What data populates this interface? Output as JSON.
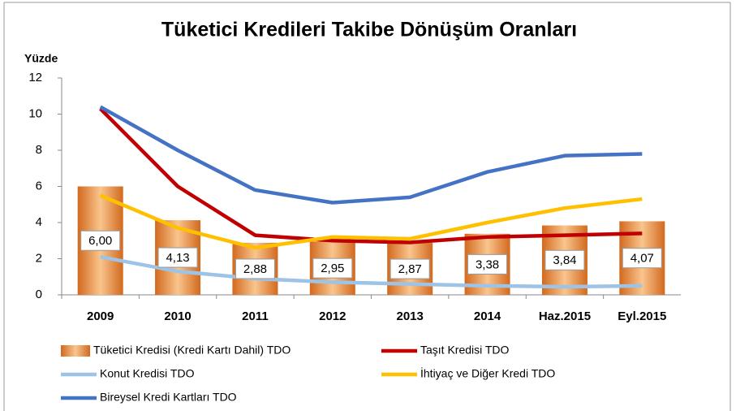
{
  "chart_data": {
    "type": "combo",
    "title": "Tüketici Kredileri Takibe Dönüşüm Oranları",
    "y_label": "Yüzde",
    "categories": [
      "2009",
      "2010",
      "2011",
      "2012",
      "2013",
      "2014",
      "Haz.2015",
      "Eyl.2015"
    ],
    "ylim": [
      0,
      12
    ],
    "yticks": [
      0,
      2,
      4,
      6,
      8,
      10,
      12
    ],
    "series": [
      {
        "name": "Tüketici Kredisi (Kredi Kartı Dahil) TDO",
        "type": "bar",
        "color": "#d2691e",
        "values": [
          6.0,
          4.13,
          2.88,
          2.95,
          2.87,
          3.38,
          3.84,
          4.07
        ],
        "value_labels": [
          "6,00",
          "4,13",
          "2,88",
          "2,95",
          "2,87",
          "3,38",
          "3,84",
          "4,07"
        ]
      },
      {
        "name": "Taşıt Kredisi TDO",
        "type": "line",
        "color": "#c00000",
        "values": [
          10.3,
          6.0,
          3.3,
          3.0,
          2.9,
          3.2,
          3.3,
          3.4
        ]
      },
      {
        "name": "Konut Kredisi TDO",
        "type": "line",
        "color": "#9dc3e6",
        "values": [
          2.1,
          1.3,
          0.9,
          0.7,
          0.6,
          0.5,
          0.45,
          0.5
        ]
      },
      {
        "name": "İhtiyaç ve Diğer Kredi TDO",
        "type": "line",
        "color": "#ffc000",
        "values": [
          5.5,
          3.7,
          2.6,
          3.2,
          3.1,
          4.0,
          4.8,
          5.3
        ]
      },
      {
        "name": "Bireysel Kredi Kartları TDO",
        "type": "line",
        "color": "#4472c4",
        "values": [
          10.4,
          8.0,
          5.8,
          5.1,
          5.4,
          6.8,
          7.7,
          7.8
        ]
      }
    ]
  }
}
